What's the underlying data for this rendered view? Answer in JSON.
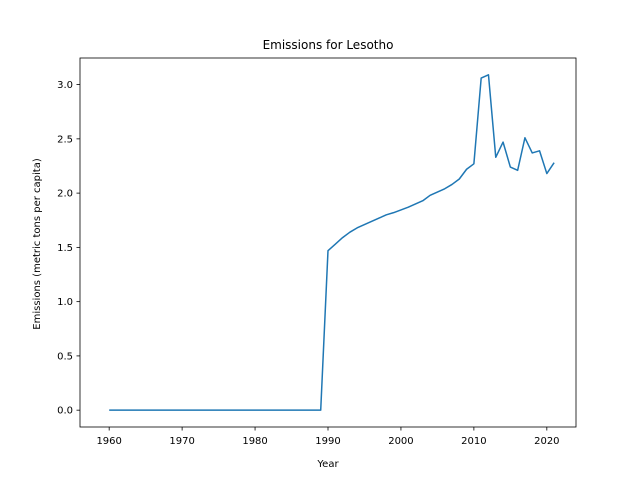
{
  "chart_data": {
    "type": "line",
    "title": "Emissions for Lesotho",
    "xlabel": "Year",
    "ylabel": "Emissions (metric tons per capita)",
    "xlim": [
      1956,
      2024
    ],
    "ylim": [
      -0.155,
      3.245
    ],
    "x_ticks": [
      1960,
      1970,
      1980,
      1990,
      2000,
      2010,
      2020
    ],
    "y_ticks": [
      0.0,
      0.5,
      1.0,
      1.5,
      2.0,
      2.5,
      3.0
    ],
    "y_tick_labels": [
      "0.0",
      "0.5",
      "1.0",
      "1.5",
      "2.0",
      "2.5",
      "3.0"
    ],
    "grid": false,
    "series": [
      {
        "color": "#1f77b4",
        "x": [
          1960,
          1961,
          1962,
          1963,
          1964,
          1965,
          1966,
          1967,
          1968,
          1969,
          1970,
          1971,
          1972,
          1973,
          1974,
          1975,
          1976,
          1977,
          1978,
          1979,
          1980,
          1981,
          1982,
          1983,
          1984,
          1985,
          1986,
          1987,
          1988,
          1989,
          1990,
          1991,
          1992,
          1993,
          1994,
          1995,
          1996,
          1997,
          1998,
          1999,
          2000,
          2001,
          2002,
          2003,
          2004,
          2005,
          2006,
          2007,
          2008,
          2009,
          2010,
          2011,
          2012,
          2013,
          2014,
          2015,
          2016,
          2017,
          2018,
          2019,
          2020,
          2021
        ],
        "values": [
          0,
          0,
          0,
          0,
          0,
          0,
          0,
          0,
          0,
          0,
          0,
          0,
          0,
          0,
          0,
          0,
          0,
          0,
          0,
          0,
          0,
          0,
          0,
          0,
          0,
          0,
          0,
          0,
          0,
          0,
          1.47,
          1.53,
          1.59,
          1.64,
          1.68,
          1.71,
          1.74,
          1.77,
          1.8,
          1.82,
          1.845,
          1.87,
          1.9,
          1.93,
          1.98,
          2.01,
          2.04,
          2.08,
          2.13,
          2.22,
          2.27,
          3.06,
          3.09,
          2.33,
          2.47,
          2.24,
          2.21,
          2.51,
          2.37,
          2.39,
          2.18,
          2.28
        ]
      }
    ]
  }
}
